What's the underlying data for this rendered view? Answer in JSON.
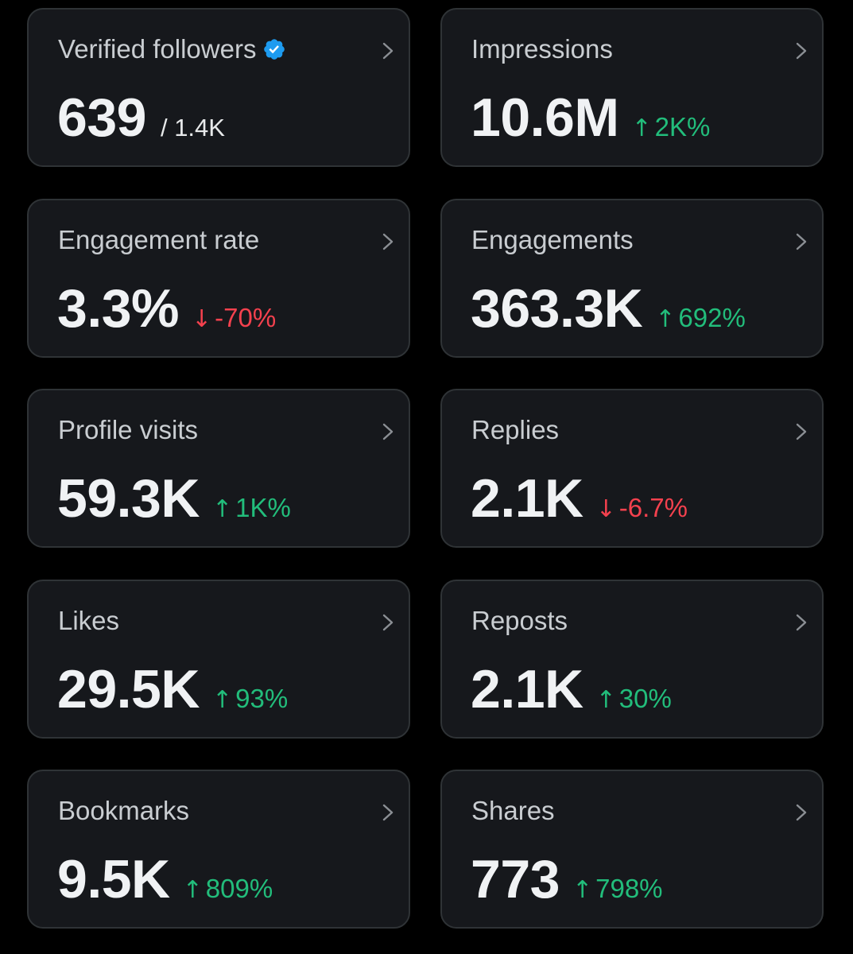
{
  "colors": {
    "background": "#000000",
    "card": "#16181c",
    "border": "#2f3336",
    "up": "#22bd7b",
    "down": "#f4414e",
    "verified": "#1d9bf0"
  },
  "cards": [
    {
      "label": "Verified followers",
      "value": "639",
      "total": "/ 1.4K",
      "change": ""
    },
    {
      "label": "Impressions",
      "value": "10.6M",
      "change_arrow": "↑",
      "change": "2K%"
    },
    {
      "label": "Engagement rate",
      "value": "3.3%",
      "change_arrow": "↓",
      "change": "-70%"
    },
    {
      "label": "Engagements",
      "value": "363.3K",
      "change_arrow": "↑",
      "change": "692%"
    },
    {
      "label": "Profile visits",
      "value": "59.3K",
      "change_arrow": "↑",
      "change": "1K%"
    },
    {
      "label": "Replies",
      "value": "2.1K",
      "change_arrow": "↓",
      "change": "-6.7%"
    },
    {
      "label": "Likes",
      "value": "29.5K",
      "change_arrow": "↑",
      "change": "93%"
    },
    {
      "label": "Reposts",
      "value": "2.1K",
      "change_arrow": "↑",
      "change": "30%"
    },
    {
      "label": "Bookmarks",
      "value": "9.5K",
      "change_arrow": "↑",
      "change": "809%"
    },
    {
      "label": "Shares",
      "value": "773",
      "change_arrow": "↑",
      "change": "798%"
    }
  ]
}
